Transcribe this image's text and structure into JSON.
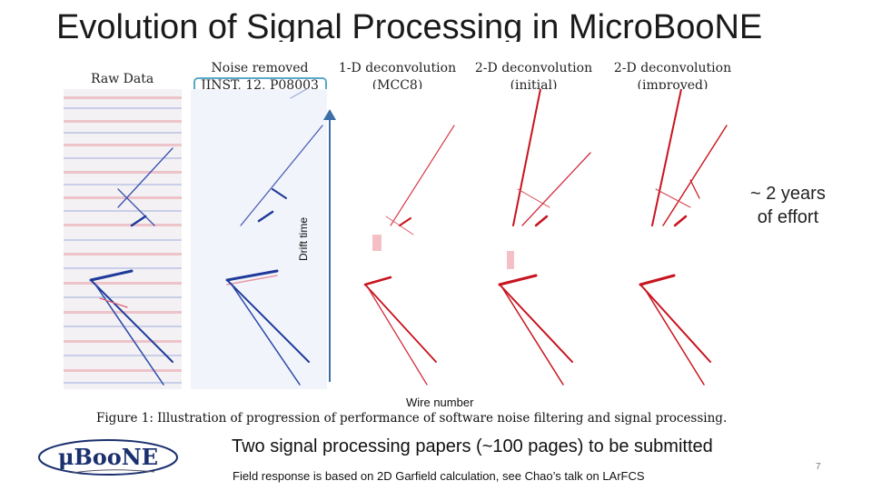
{
  "slide": {
    "title": "Evolution of Signal Processing in MicroBooNE",
    "panels": [
      {
        "line1": "Raw Data",
        "line2": ""
      },
      {
        "line1": "Noise removed",
        "line2": "JINST, 12, P08003"
      },
      {
        "line1": "1-D deconvolution",
        "line2": "(MCC8)"
      },
      {
        "line1": "2-D deconvolution",
        "line2": "(initial)"
      },
      {
        "line1": "2-D deconvolution",
        "line2": "(improved)"
      }
    ],
    "drift_axis_label": "Drift time",
    "wire_axis_label": "Wire number",
    "caption": "Figure 1: Illustration of progression of performance of software noise filtering and signal processing.",
    "effort_line1": "~ 2 years",
    "effort_line2": "of effort",
    "papers_note": "Two signal processing papers (~100 pages) to be submitted",
    "field_note": "Field response is based on 2D Garfield calculation, see Chao’s talk on LArFCS",
    "page_number": "7",
    "logo_text": "μBooNE",
    "colors": {
      "raw_blue": "#1e3a9a",
      "raw_red": "#e06070",
      "decon_red": "#c8141e",
      "arrow": "#3c6ea8",
      "highlight_box": "#58a9c8"
    }
  }
}
